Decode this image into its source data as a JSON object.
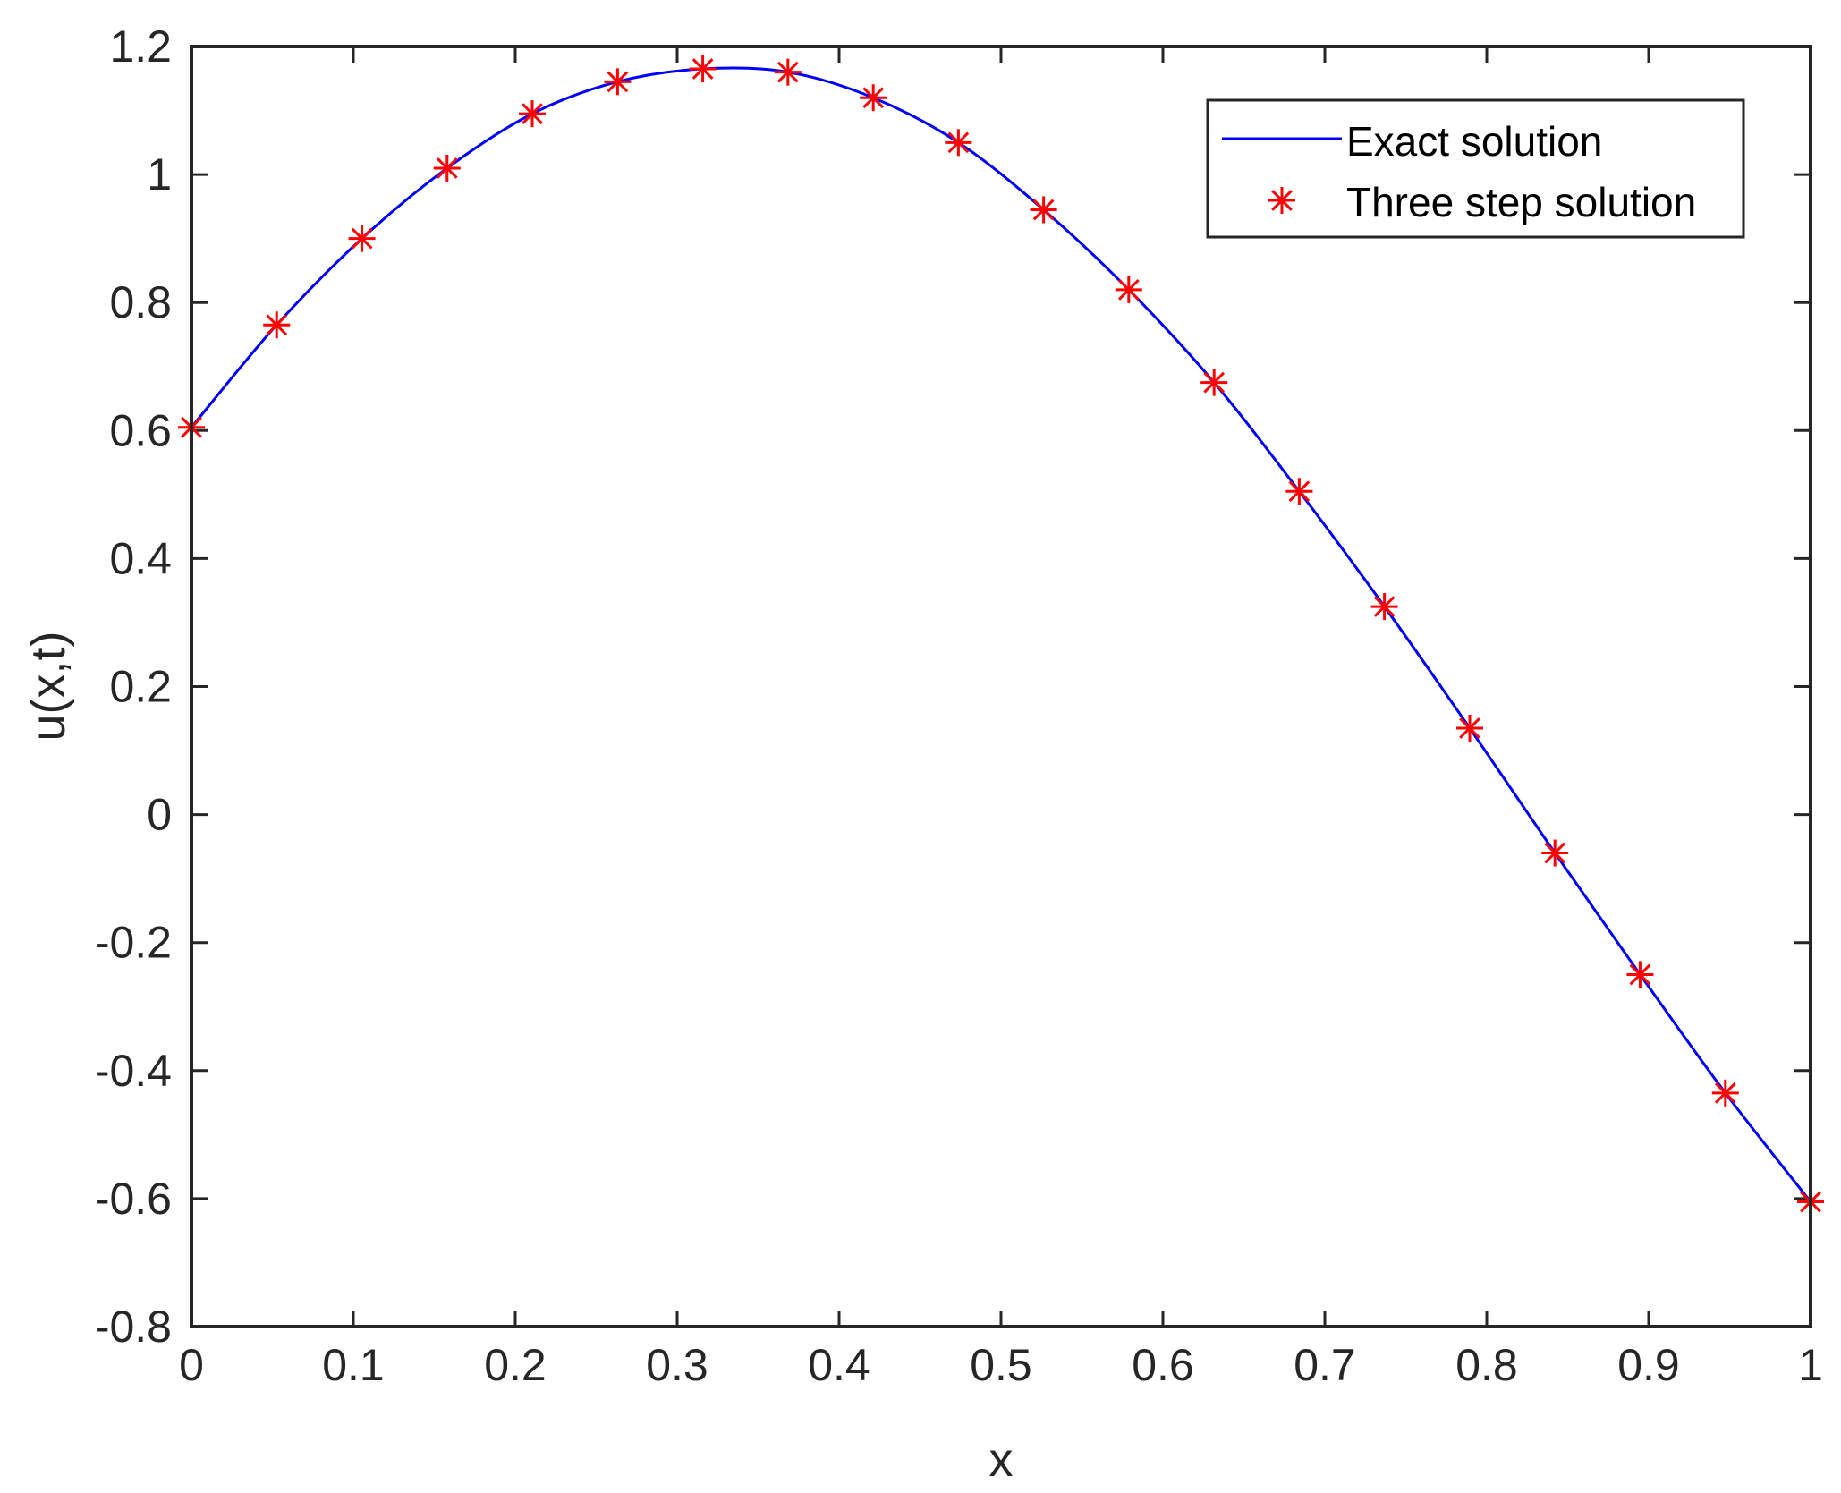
{
  "chart_data": {
    "type": "line",
    "xlabel": "x",
    "ylabel": "u(x,t)",
    "xlim": [
      0,
      1
    ],
    "ylim": [
      -0.8,
      1.2
    ],
    "x_ticks": [
      "0",
      "0.1",
      "0.2",
      "0.3",
      "0.4",
      "0.5",
      "0.6",
      "0.7",
      "0.8",
      "0.9",
      "1"
    ],
    "y_ticks": [
      "-0.8",
      "-0.6",
      "-0.4",
      "-0.2",
      "0",
      "0.2",
      "0.4",
      "0.6",
      "0.8",
      "1",
      "1.2"
    ],
    "grid": false,
    "box": true,
    "legend_location": "top-right",
    "series": [
      {
        "name": "Exact solution",
        "style": "line",
        "color": "#0000ff",
        "x": [
          0,
          0.0526,
          0.1053,
          0.1579,
          0.2105,
          0.2632,
          0.3158,
          0.3684,
          0.4211,
          0.4737,
          0.5263,
          0.5789,
          0.6316,
          0.6842,
          0.7368,
          0.7895,
          0.8421,
          0.8947,
          0.9474,
          1
        ],
        "y": [
          0.605,
          0.765,
          0.9,
          1.01,
          1.095,
          1.145,
          1.165,
          1.16,
          1.12,
          1.05,
          0.945,
          0.82,
          0.675,
          0.505,
          0.325,
          0.135,
          -0.06,
          -0.25,
          -0.435,
          -0.605
        ]
      },
      {
        "name": "Three step solution",
        "style": "markers",
        "marker": "asterisk",
        "color": "#ff0000",
        "x": [
          0,
          0.0526,
          0.1053,
          0.1579,
          0.2105,
          0.2632,
          0.3158,
          0.3684,
          0.4211,
          0.4737,
          0.5263,
          0.5789,
          0.6316,
          0.6842,
          0.7368,
          0.7895,
          0.8421,
          0.8947,
          0.9474,
          1
        ],
        "y": [
          0.605,
          0.765,
          0.9,
          1.01,
          1.095,
          1.145,
          1.165,
          1.16,
          1.12,
          1.05,
          0.945,
          0.82,
          0.675,
          0.505,
          0.325,
          0.135,
          -0.06,
          -0.25,
          -0.435,
          -0.605
        ]
      }
    ]
  }
}
